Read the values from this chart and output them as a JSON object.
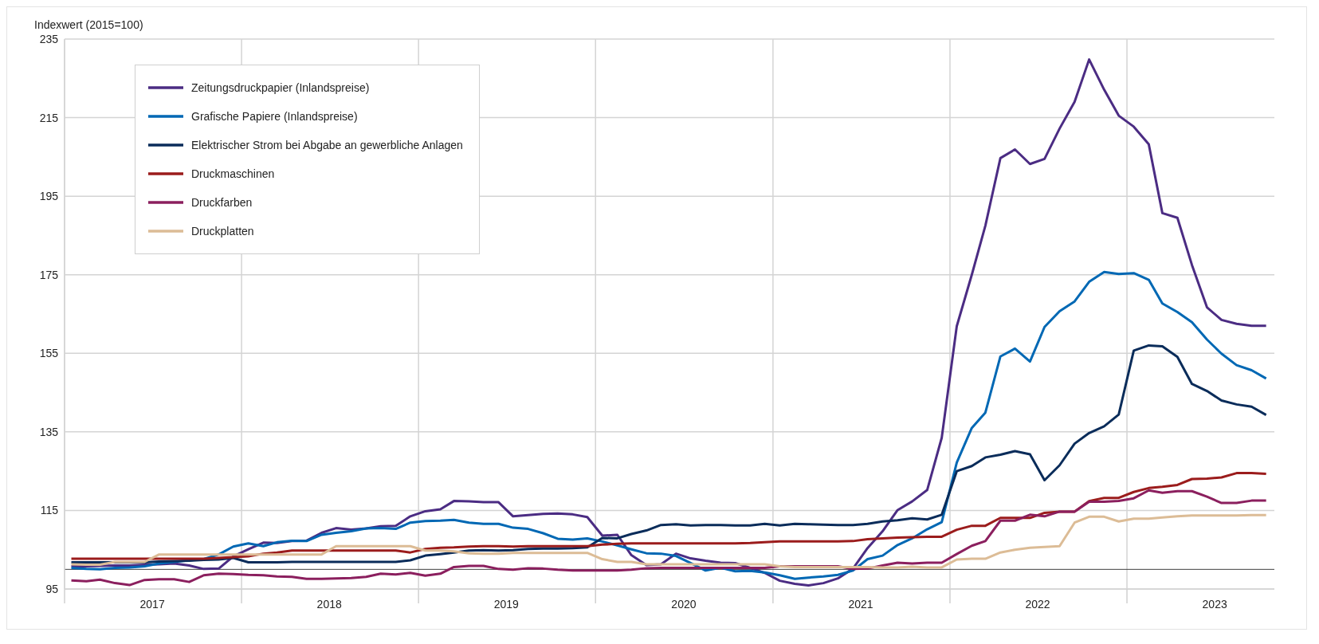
{
  "chart_data": {
    "type": "line",
    "ylabel": "Indexwert (2015=100)",
    "x": [
      "2017-01-15",
      "2017-02-15",
      "2017-03-15",
      "2017-04-15",
      "2017-05-15",
      "2017-06-15",
      "2017-07-15",
      "2017-08-15",
      "2017-09-15",
      "2017-10-15",
      "2017-11-15",
      "2017-12-15",
      "2018-01-15",
      "2018-02-15",
      "2018-03-15",
      "2018-04-15",
      "2018-05-15",
      "2018-06-15",
      "2018-07-15",
      "2018-08-15",
      "2018-09-15",
      "2018-10-15",
      "2018-11-15",
      "2018-12-15",
      "2019-01-15",
      "2019-02-15",
      "2019-03-15",
      "2019-04-15",
      "2019-05-15",
      "2019-06-15",
      "2019-07-15",
      "2019-08-15",
      "2019-09-15",
      "2019-10-15",
      "2019-11-15",
      "2019-12-15",
      "2020-01-15",
      "2020-02-15",
      "2020-03-15",
      "2020-04-15",
      "2020-05-15",
      "2020-06-15",
      "2020-07-15",
      "2020-08-15",
      "2020-09-15",
      "2020-10-15",
      "2020-11-15",
      "2020-12-15",
      "2021-01-15",
      "2021-02-15",
      "2021-03-15",
      "2021-04-15",
      "2021-05-15",
      "2021-06-15",
      "2021-07-15",
      "2021-08-15",
      "2021-09-15",
      "2021-10-15",
      "2021-11-15",
      "2021-12-15",
      "2022-01-15",
      "2022-02-15",
      "2022-03-15",
      "2022-04-15",
      "2022-05-15",
      "2022-06-15",
      "2022-07-15",
      "2022-08-15",
      "2022-09-15",
      "2022-10-15",
      "2022-11-15",
      "2022-12-15",
      "2023-01-15",
      "2023-02-15",
      "2023-03-15",
      "2023-04-15",
      "2023-05-15",
      "2023-06-15",
      "2023-07-15",
      "2023-08-15",
      "2023-09-15",
      "2023-10-15"
    ],
    "series": [
      {
        "name": "Zeitungsdruckpapier (Inlandspreise)",
        "color": "#4b2c83",
        "values": [
          100.8,
          100.8,
          100.9,
          101,
          101,
          101.2,
          101.3,
          101.5,
          101,
          100.1,
          100.2,
          103.3,
          105.1,
          106.8,
          106.7,
          107.2,
          107.3,
          109.3,
          110.5,
          110.1,
          110.4,
          111,
          111.1,
          113.5,
          114.8,
          115.3,
          117.4,
          117.3,
          117.1,
          117.1,
          113.5,
          113.8,
          114.1,
          114.2,
          114,
          113.3,
          108.6,
          108.8,
          103.6,
          101.1,
          101.3,
          104,
          102.8,
          102.2,
          101.7,
          101.6,
          100.4,
          99.1,
          97.1,
          96.3,
          95.9,
          96.5,
          97.7,
          100.2,
          105.4,
          109.7,
          115.1,
          117.3,
          120.2,
          133.5,
          161.9,
          175,
          187.5,
          204.7,
          206.9,
          203.2,
          204.5,
          212.2,
          219,
          229.8,
          222.1,
          215.5,
          212.7,
          208.2,
          190.7,
          189.5,
          177.5,
          166.7,
          163.5,
          162.5,
          162,
          162
        ]
      },
      {
        "name": "Grafische Papiere (Inlandspreise)",
        "color": "#0068b4",
        "values": [
          100.4,
          100.1,
          100,
          100.4,
          100.5,
          100.8,
          101.5,
          101.9,
          102.3,
          102.6,
          103.8,
          105.8,
          106.6,
          105.9,
          106.9,
          107.3,
          107.2,
          108.8,
          109.3,
          109.7,
          110.4,
          110.5,
          110.3,
          111.9,
          112.3,
          112.4,
          112.6,
          111.9,
          111.6,
          111.6,
          110.6,
          110.3,
          109.2,
          107.8,
          107.6,
          107.9,
          107.1,
          106.1,
          105.1,
          104.1,
          104,
          103.4,
          101.6,
          99.7,
          100.4,
          99.5,
          99.6,
          99.2,
          98.5,
          97.6,
          97.9,
          98.2,
          98.6,
          99.7,
          102.6,
          103.5,
          106.2,
          107.9,
          110.2,
          112,
          127.2,
          136,
          139.9,
          154.2,
          156.2,
          152.9,
          161.7,
          165.7,
          168.2,
          173.2,
          175.7,
          175.2,
          175.4,
          173.7,
          167.7,
          165.5,
          162.9,
          158.5,
          154.9,
          152,
          150.7,
          148.6
        ]
      },
      {
        "name": "Elektrischer Strom bei Abgabe an gewerbliche Anlagen",
        "color": "#0a2c5a",
        "values": [
          101.8,
          101.8,
          101.8,
          101.8,
          101.8,
          101.8,
          102,
          102.1,
          102.2,
          102.4,
          102.5,
          102.9,
          101.8,
          101.8,
          101.8,
          101.9,
          101.9,
          101.9,
          101.9,
          101.9,
          101.9,
          101.9,
          101.9,
          102.3,
          103.5,
          103.9,
          104.3,
          104.8,
          104.9,
          104.8,
          104.9,
          105.2,
          105.3,
          105.3,
          105.4,
          105.6,
          108,
          107.9,
          109,
          109.9,
          111.3,
          111.5,
          111.2,
          111.3,
          111.3,
          111.2,
          111.2,
          111.6,
          111.2,
          111.6,
          111.5,
          111.4,
          111.3,
          111.3,
          111.6,
          112.2,
          112.5,
          113,
          112.7,
          113.9,
          125,
          126.3,
          128.5,
          129.2,
          130.1,
          129.3,
          122.7,
          126.5,
          132,
          134.7,
          136.4,
          139.4,
          155.7,
          157,
          156.8,
          154.1,
          147.2,
          145.4,
          143,
          142,
          141.4,
          139.3
        ]
      },
      {
        "name": "Druckmaschinen",
        "color": "#9b1c1c",
        "values": [
          102.7,
          102.7,
          102.7,
          102.7,
          102.7,
          102.7,
          102.7,
          102.7,
          102.7,
          102.7,
          102.9,
          103.1,
          103.3,
          104,
          104.3,
          104.8,
          104.8,
          104.8,
          104.8,
          104.8,
          104.8,
          104.8,
          104.8,
          104.3,
          105.2,
          105.5,
          105.6,
          105.8,
          105.9,
          105.9,
          105.8,
          105.9,
          105.9,
          105.9,
          105.9,
          105.9,
          106.3,
          106.5,
          106.6,
          106.6,
          106.6,
          106.6,
          106.6,
          106.6,
          106.6,
          106.6,
          106.7,
          106.9,
          107.1,
          107.1,
          107.1,
          107.1,
          107.1,
          107.2,
          107.7,
          107.9,
          108.1,
          108.2,
          108.3,
          108.3,
          110.1,
          111.1,
          111.1,
          113.1,
          113.1,
          113.1,
          114.4,
          114.7,
          114.7,
          117.4,
          118.2,
          118.2,
          119.7,
          120.7,
          121,
          121.5,
          123,
          123.1,
          123.4,
          124.5,
          124.5,
          124.3
        ]
      },
      {
        "name": "Druckfarben",
        "color": "#8b1f5e",
        "values": [
          97.2,
          97,
          97.4,
          96.5,
          96,
          97.3,
          97.5,
          97.5,
          96.8,
          98.5,
          98.9,
          98.8,
          98.6,
          98.5,
          98.2,
          98.1,
          97.6,
          97.6,
          97.7,
          97.8,
          98.1,
          98.9,
          98.7,
          99.1,
          98.4,
          98.9,
          100.6,
          100.9,
          100.9,
          100.1,
          99.9,
          100.3,
          100.2,
          99.9,
          99.7,
          99.7,
          99.7,
          99.7,
          99.9,
          100.3,
          100.4,
          100.4,
          100.4,
          100.4,
          100.4,
          100.4,
          100.4,
          100.4,
          100.8,
          100.8,
          100.8,
          100.8,
          100.8,
          100.1,
          100.2,
          101,
          101.7,
          101.5,
          101.7,
          101.7,
          103.9,
          106,
          107.2,
          112.4,
          112.4,
          113.9,
          113.5,
          114.7,
          114.7,
          117.2,
          117.2,
          117.4,
          118.1,
          120.1,
          119.5,
          119.9,
          119.9,
          118.5,
          116.9,
          116.9,
          117.5,
          117.5
        ]
      },
      {
        "name": "Druckplatten",
        "color": "#dcbc96",
        "values": [
          101.3,
          101.2,
          101.2,
          101.9,
          101.9,
          101.9,
          103.8,
          103.8,
          103.8,
          103.8,
          103.8,
          103.8,
          103.8,
          103.8,
          103.8,
          103.8,
          103.8,
          103.8,
          105.9,
          105.9,
          105.9,
          105.9,
          105.9,
          105.9,
          104.8,
          104.8,
          104.6,
          104.1,
          104,
          104,
          104.2,
          104.2,
          104.2,
          104.2,
          104.2,
          104.2,
          102.6,
          101.9,
          101.9,
          101.3,
          101.3,
          101.3,
          101.3,
          101.3,
          101.3,
          101.3,
          101.3,
          101.3,
          100.8,
          100.6,
          100.6,
          100.6,
          100.6,
          100.6,
          100.6,
          100.5,
          100.5,
          100.7,
          100.5,
          100.5,
          102.5,
          102.7,
          102.7,
          104.3,
          105,
          105.5,
          105.7,
          105.9,
          111.9,
          113.4,
          113.4,
          112.2,
          112.9,
          112.9,
          113.2,
          113.5,
          113.7,
          113.7,
          113.7,
          113.7,
          113.8,
          113.8
        ]
      }
    ],
    "xlim": [
      "2017-01-01",
      "2023-11-01"
    ],
    "xticks": [
      {
        "value": "2017-01-01",
        "label": null
      },
      {
        "value": "2017-07-01",
        "label": "2017"
      },
      {
        "value": "2018-01-01",
        "label": null
      },
      {
        "value": "2018-07-01",
        "label": "2018"
      },
      {
        "value": "2019-01-01",
        "label": null
      },
      {
        "value": "2019-07-01",
        "label": "2019"
      },
      {
        "value": "2020-01-01",
        "label": null
      },
      {
        "value": "2020-07-01",
        "label": "2020"
      },
      {
        "value": "2021-01-01",
        "label": null
      },
      {
        "value": "2021-07-01",
        "label": "2021"
      },
      {
        "value": "2022-01-01",
        "label": null
      },
      {
        "value": "2022-07-01",
        "label": "2022"
      },
      {
        "value": "2023-01-01",
        "label": null
      },
      {
        "value": "2023-07-01",
        "label": "2023"
      }
    ],
    "ylim": [
      95,
      235
    ],
    "yticks": [
      95,
      115,
      135,
      155,
      175,
      195,
      215,
      235
    ],
    "ref_lines": [
      {
        "axis": "y",
        "value": 100,
        "color": "#404040"
      }
    ],
    "grid": true,
    "legend": "top left",
    "marker": "none",
    "line_style": "solid"
  }
}
